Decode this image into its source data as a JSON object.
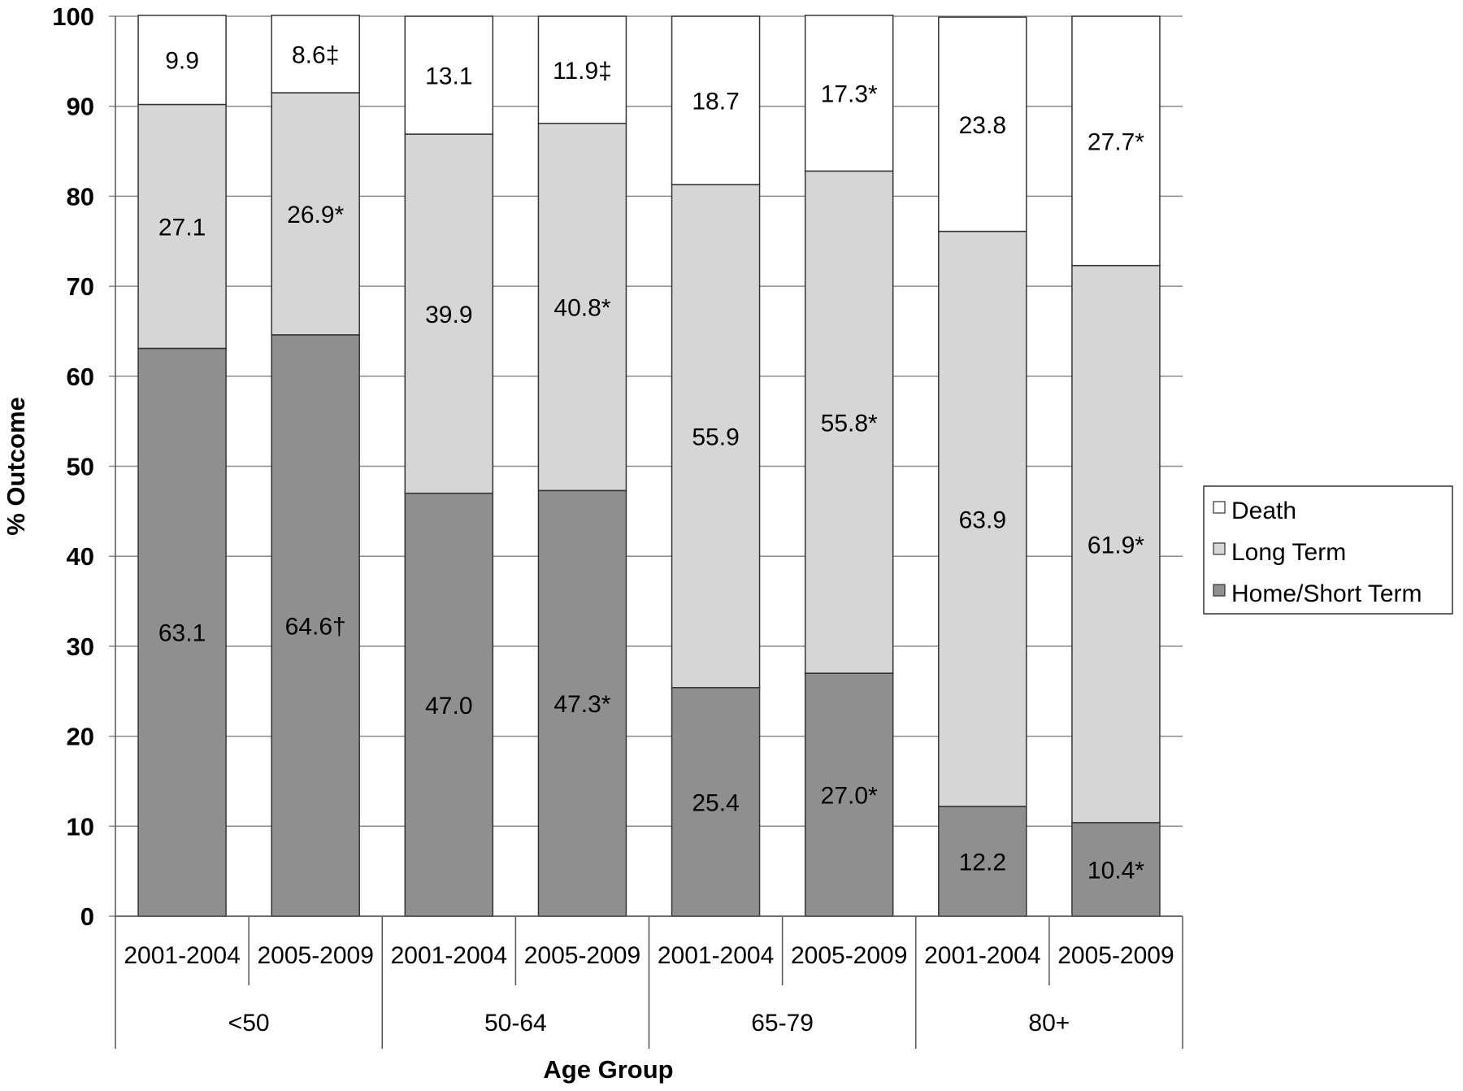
{
  "chart_data": {
    "type": "bar",
    "stacked": true,
    "xlabel": "Age Group",
    "ylabel": "% Outcome",
    "ylim": [
      0,
      100
    ],
    "yticks": [
      0,
      10,
      20,
      30,
      40,
      50,
      60,
      70,
      80,
      90,
      100
    ],
    "grid": true,
    "legend_position": "right",
    "groups": [
      "<50",
      "50-64",
      "65-79",
      "80+"
    ],
    "categories": [
      "2001-2004",
      "2005-2009",
      "2001-2004",
      "2005-2009",
      "2001-2004",
      "2005-2009",
      "2001-2004",
      "2005-2009"
    ],
    "series": [
      {
        "name": "Home/Short Term",
        "color": "#8f8f8f",
        "values": [
          63.1,
          64.6,
          47.0,
          47.3,
          25.4,
          27.0,
          12.2,
          10.4
        ],
        "labels": [
          "63.1",
          "64.6†",
          "47.0",
          "47.3*",
          "25.4",
          "27.0*",
          "12.2",
          "10.4*"
        ]
      },
      {
        "name": "Long Term",
        "color": "#d6d6d6",
        "values": [
          27.1,
          26.9,
          39.9,
          40.8,
          55.9,
          55.8,
          63.9,
          61.9
        ],
        "labels": [
          "27.1",
          "26.9*",
          "39.9",
          "40.8*",
          "55.9",
          "55.8*",
          "63.9",
          "61.9*"
        ]
      },
      {
        "name": "Death",
        "color": "#ffffff",
        "values": [
          9.9,
          8.6,
          13.1,
          11.9,
          18.7,
          17.3,
          23.8,
          27.7
        ],
        "labels": [
          "9.9",
          "8.6‡",
          "13.1",
          "11.9‡",
          "18.7",
          "17.3*",
          "23.8",
          "27.7*"
        ]
      }
    ],
    "legend_order": [
      "Death",
      "Long Term",
      "Home/Short Term"
    ]
  }
}
